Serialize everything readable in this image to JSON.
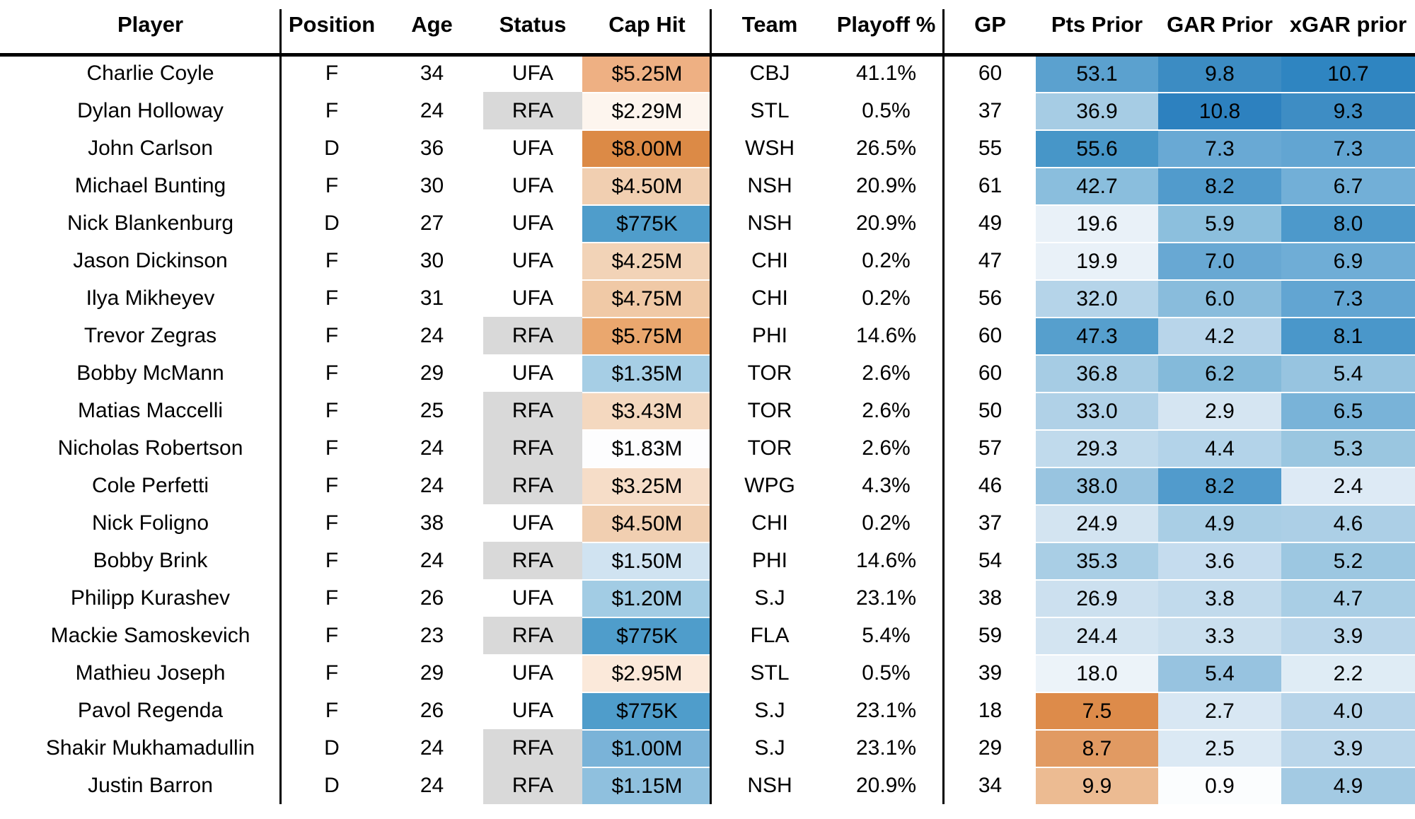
{
  "chart_data": {
    "type": "table",
    "columns": [
      "Player",
      "Position",
      "Age",
      "Status",
      "Cap Hit",
      "Team",
      "Playoff %",
      "GP",
      "Pts Prior",
      "GAR Prior",
      "xGAR prior"
    ],
    "rows": [
      {
        "player": "Charlie Coyle",
        "position": "F",
        "age": 34,
        "status": "UFA",
        "cap_hit": "$5.25M",
        "team": "CBJ",
        "playoff_pct": "41.1%",
        "gp": 60,
        "pts_prior": "53.1",
        "gar_prior": "9.8",
        "xgar_prior": "10.7"
      },
      {
        "player": "Dylan Holloway",
        "position": "F",
        "age": 24,
        "status": "RFA",
        "cap_hit": "$2.29M",
        "team": "STL",
        "playoff_pct": "0.5%",
        "gp": 37,
        "pts_prior": "36.9",
        "gar_prior": "10.8",
        "xgar_prior": "9.3"
      },
      {
        "player": "John Carlson",
        "position": "D",
        "age": 36,
        "status": "UFA",
        "cap_hit": "$8.00M",
        "team": "WSH",
        "playoff_pct": "26.5%",
        "gp": 55,
        "pts_prior": "55.6",
        "gar_prior": "7.3",
        "xgar_prior": "7.3"
      },
      {
        "player": "Michael Bunting",
        "position": "F",
        "age": 30,
        "status": "UFA",
        "cap_hit": "$4.50M",
        "team": "NSH",
        "playoff_pct": "20.9%",
        "gp": 61,
        "pts_prior": "42.7",
        "gar_prior": "8.2",
        "xgar_prior": "6.7"
      },
      {
        "player": "Nick Blankenburg",
        "position": "D",
        "age": 27,
        "status": "UFA",
        "cap_hit": "$775K",
        "team": "NSH",
        "playoff_pct": "20.9%",
        "gp": 49,
        "pts_prior": "19.6",
        "gar_prior": "5.9",
        "xgar_prior": "8.0"
      },
      {
        "player": "Jason Dickinson",
        "position": "F",
        "age": 30,
        "status": "UFA",
        "cap_hit": "$4.25M",
        "team": "CHI",
        "playoff_pct": "0.2%",
        "gp": 47,
        "pts_prior": "19.9",
        "gar_prior": "7.0",
        "xgar_prior": "6.9"
      },
      {
        "player": "Ilya Mikheyev",
        "position": "F",
        "age": 31,
        "status": "UFA",
        "cap_hit": "$4.75M",
        "team": "CHI",
        "playoff_pct": "0.2%",
        "gp": 56,
        "pts_prior": "32.0",
        "gar_prior": "6.0",
        "xgar_prior": "7.3"
      },
      {
        "player": "Trevor Zegras",
        "position": "F",
        "age": 24,
        "status": "RFA",
        "cap_hit": "$5.75M",
        "team": "PHI",
        "playoff_pct": "14.6%",
        "gp": 60,
        "pts_prior": "47.3",
        "gar_prior": "4.2",
        "xgar_prior": "8.1"
      },
      {
        "player": "Bobby McMann",
        "position": "F",
        "age": 29,
        "status": "UFA",
        "cap_hit": "$1.35M",
        "team": "TOR",
        "playoff_pct": "2.6%",
        "gp": 60,
        "pts_prior": "36.8",
        "gar_prior": "6.2",
        "xgar_prior": "5.4"
      },
      {
        "player": "Matias Maccelli",
        "position": "F",
        "age": 25,
        "status": "RFA",
        "cap_hit": "$3.43M",
        "team": "TOR",
        "playoff_pct": "2.6%",
        "gp": 50,
        "pts_prior": "33.0",
        "gar_prior": "2.9",
        "xgar_prior": "6.5"
      },
      {
        "player": "Nicholas Robertson",
        "position": "F",
        "age": 24,
        "status": "RFA",
        "cap_hit": "$1.83M",
        "team": "TOR",
        "playoff_pct": "2.6%",
        "gp": 57,
        "pts_prior": "29.3",
        "gar_prior": "4.4",
        "xgar_prior": "5.3"
      },
      {
        "player": "Cole Perfetti",
        "position": "F",
        "age": 24,
        "status": "RFA",
        "cap_hit": "$3.25M",
        "team": "WPG",
        "playoff_pct": "4.3%",
        "gp": 46,
        "pts_prior": "38.0",
        "gar_prior": "8.2",
        "xgar_prior": "2.4"
      },
      {
        "player": "Nick Foligno",
        "position": "F",
        "age": 38,
        "status": "UFA",
        "cap_hit": "$4.50M",
        "team": "CHI",
        "playoff_pct": "0.2%",
        "gp": 37,
        "pts_prior": "24.9",
        "gar_prior": "4.9",
        "xgar_prior": "4.6"
      },
      {
        "player": "Bobby Brink",
        "position": "F",
        "age": 24,
        "status": "RFA",
        "cap_hit": "$1.50M",
        "team": "PHI",
        "playoff_pct": "14.6%",
        "gp": 54,
        "pts_prior": "35.3",
        "gar_prior": "3.6",
        "xgar_prior": "5.2"
      },
      {
        "player": "Philipp Kurashev",
        "position": "F",
        "age": 26,
        "status": "UFA",
        "cap_hit": "$1.20M",
        "team": "S.J",
        "playoff_pct": "23.1%",
        "gp": 38,
        "pts_prior": "26.9",
        "gar_prior": "3.8",
        "xgar_prior": "4.7"
      },
      {
        "player": "Mackie Samoskevich",
        "position": "F",
        "age": 23,
        "status": "RFA",
        "cap_hit": "$775K",
        "team": "FLA",
        "playoff_pct": "5.4%",
        "gp": 59,
        "pts_prior": "24.4",
        "gar_prior": "3.3",
        "xgar_prior": "3.9"
      },
      {
        "player": "Mathieu Joseph",
        "position": "F",
        "age": 29,
        "status": "UFA",
        "cap_hit": "$2.95M",
        "team": "STL",
        "playoff_pct": "0.5%",
        "gp": 39,
        "pts_prior": "18.0",
        "gar_prior": "5.4",
        "xgar_prior": "2.2"
      },
      {
        "player": "Pavol Regenda",
        "position": "F",
        "age": 26,
        "status": "UFA",
        "cap_hit": "$775K",
        "team": "S.J",
        "playoff_pct": "23.1%",
        "gp": 18,
        "pts_prior": "7.5",
        "gar_prior": "2.7",
        "xgar_prior": "4.0"
      },
      {
        "player": "Shakir Mukhamadullin",
        "position": "D",
        "age": 24,
        "status": "RFA",
        "cap_hit": "$1.00M",
        "team": "S.J",
        "playoff_pct": "23.1%",
        "gp": 29,
        "pts_prior": "8.7",
        "gar_prior": "2.5",
        "xgar_prior": "3.9"
      },
      {
        "player": "Justin Barron",
        "position": "D",
        "age": 24,
        "status": "RFA",
        "cap_hit": "$1.15M",
        "team": "NSH",
        "playoff_pct": "20.9%",
        "gp": 34,
        "pts_prior": "9.9",
        "gar_prior": "0.9",
        "xgar_prior": "4.9"
      }
    ],
    "heat_colors": {
      "status": {
        "RFA": "#d9d9d9"
      },
      "cap_hit": [
        "#eeb083",
        "#fdf5ee",
        "#dc8a46",
        "#f1cfb1",
        "#4f9dcb",
        "#f2d3b7",
        "#f0c9a6",
        "#eaa76e",
        "#a6cee5",
        "#f4d8bf",
        "#fdfdfe",
        "#f6ddc8",
        "#f1cfb1",
        "#d0e3f1",
        "#a2cce4",
        "#4f9dcb",
        "#fbe9da",
        "#4f9dcb",
        "#7ab3d8",
        "#8fc0de"
      ],
      "pts_prior": [
        "#5ba1cf",
        "#a6cce4",
        "#4796c8",
        "#8abedd",
        "#e9f1f8",
        "#e9f1f8",
        "#b5d4e9",
        "#569fcd",
        "#a6cce4",
        "#b0d1e7",
        "#c0daec",
        "#98c4e0",
        "#d3e4f1",
        "#a9cee5",
        "#cce0ef",
        "#d3e4f1",
        "#ecf3f9",
        "#dd8b4a",
        "#e19a62",
        "#ecbb92"
      ],
      "gar_prior": [
        "#3c8cc3",
        "#2d81bf",
        "#69a9d4",
        "#519bcc",
        "#8cbfdd",
        "#68a8d3",
        "#89bcdc",
        "#b8d5ea",
        "#84bada",
        "#d5e5f2",
        "#b3d3e9",
        "#519bcc",
        "#a9cee5",
        "#c5dcee",
        "#c1daec",
        "#cadfee",
        "#97c3e0",
        "#d8e7f3",
        "#dbe9f4",
        "#fbfdfe"
      ],
      "xgar_prior": [
        "#2f85c1",
        "#3e8dc4",
        "#62a5d2",
        "#72afd7",
        "#4d99cb",
        "#6fadd6",
        "#62a5d2",
        "#4a97ca",
        "#97c4e0",
        "#79b3d8",
        "#9ac6e0",
        "#ddeaf5",
        "#accfe6",
        "#9cc7e1",
        "#a9cee5",
        "#bad6ea",
        "#dfecf5",
        "#b7d4e9",
        "#bad6ea",
        "#a3cae3"
      ]
    },
    "colors": {
      "text": "#000000",
      "grid_lines": "#000000",
      "background": "#ffffff",
      "rfa_badge": "#d9d9d9",
      "heat_high_blue": "#2d81bf",
      "heat_high_orange": "#dc8a46"
    },
    "layout_hints": {
      "grid": "off",
      "legend": "none",
      "column_group_dividers_after": [
        "Player",
        "Cap Hit",
        "Playoff %"
      ]
    }
  }
}
